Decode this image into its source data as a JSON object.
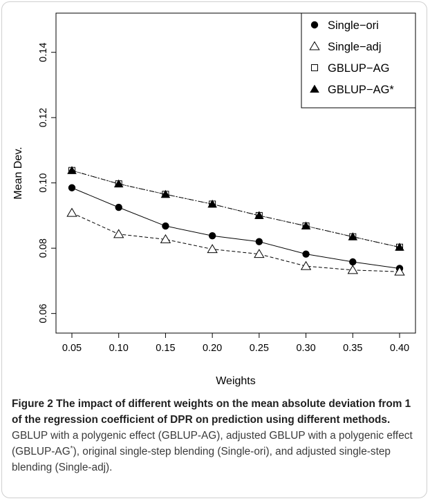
{
  "chart_data": {
    "type": "line",
    "xlabel": "Weights",
    "ylabel": "Mean Dev.",
    "x": [
      0.05,
      0.1,
      0.15,
      0.2,
      0.25,
      0.3,
      0.35,
      0.4
    ],
    "x_tick_labels": [
      "0.05",
      "0.10",
      "0.15",
      "0.20",
      "0.25",
      "0.30",
      "0.35",
      "0.40"
    ],
    "ylim": [
      0.054,
      0.152
    ],
    "y_ticks": [
      0.06,
      0.08,
      0.1,
      0.12,
      0.14
    ],
    "y_tick_labels": [
      "0.06",
      "0.08",
      "0.10",
      "0.12",
      "0.14"
    ],
    "grid": false,
    "legend_position": "top-right",
    "series": [
      {
        "name": "Single−ori",
        "marker": "filled-circle",
        "line": "solid",
        "values": [
          0.0985,
          0.0925,
          0.0868,
          0.0838,
          0.082,
          0.0782,
          0.0758,
          0.0738
        ]
      },
      {
        "name": "Single−adj",
        "marker": "open-triangle",
        "line": "dashed",
        "values": [
          0.0908,
          0.0843,
          0.0827,
          0.0797,
          0.0782,
          0.0745,
          0.0733,
          0.0728
        ]
      },
      {
        "name": "GBLUP−AG",
        "marker": "open-square",
        "line": "dotted",
        "values": [
          0.1038,
          0.0997,
          0.0965,
          0.0935,
          0.09,
          0.0868,
          0.0835,
          0.0803
        ]
      },
      {
        "name": "GBLUP−AG*",
        "marker": "filled-triangle",
        "line": "dashdot",
        "values": [
          0.1038,
          0.0997,
          0.0965,
          0.0935,
          0.09,
          0.0868,
          0.0835,
          0.0803
        ]
      }
    ]
  },
  "caption": {
    "figure_label": "Figure 2",
    "title": "The impact of different weights on the mean absolute deviation from 1 of the regression coefficient of DPR on prediction using different methods.",
    "body_part1": "GBLUP with a polygenic effect (GBLUP-AG), adjusted GBLUP with a polygenic effect (GBLUP-AG",
    "body_star": "*",
    "body_part2": "), original single-step blending (Single-ori), and adjusted single-step blending (Single-adj)."
  }
}
